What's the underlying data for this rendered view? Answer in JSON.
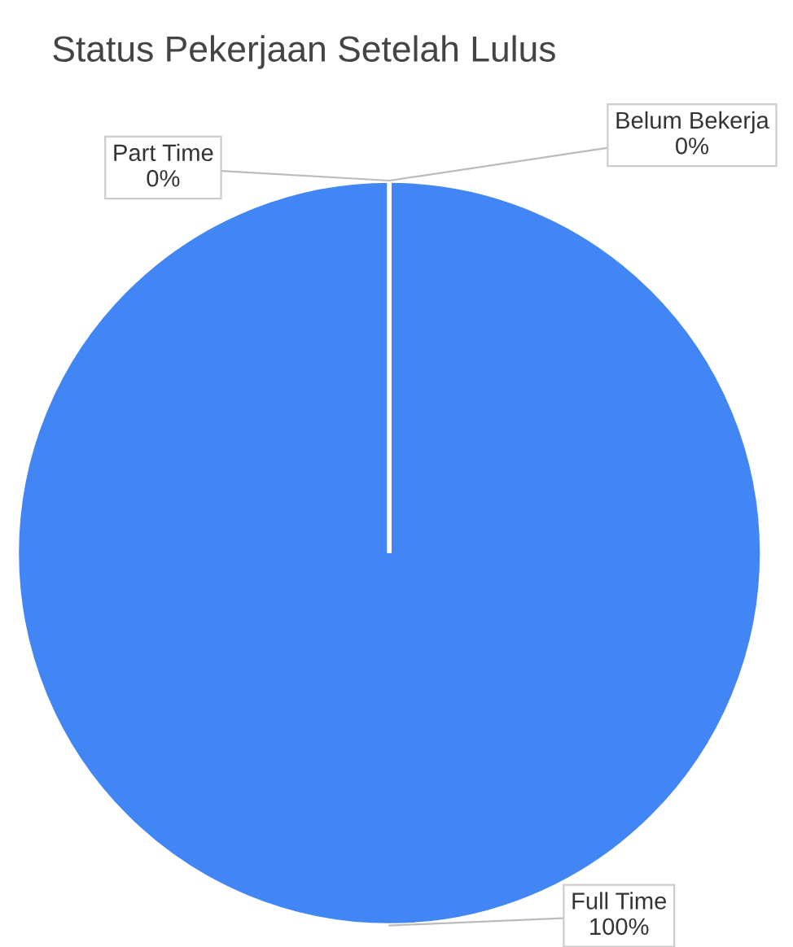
{
  "chart_data": {
    "type": "pie",
    "title": "Status Pekerjaan Setelah Lulus",
    "categories": [
      "Full Time",
      "Part Time",
      "Belum Bekerja"
    ],
    "values": [
      100,
      0,
      0
    ],
    "colors": [
      "#4285f4",
      "#ea4335",
      "#fbbc04"
    ],
    "value_labels": [
      "100%",
      "0%",
      "0%"
    ],
    "legend": false
  }
}
